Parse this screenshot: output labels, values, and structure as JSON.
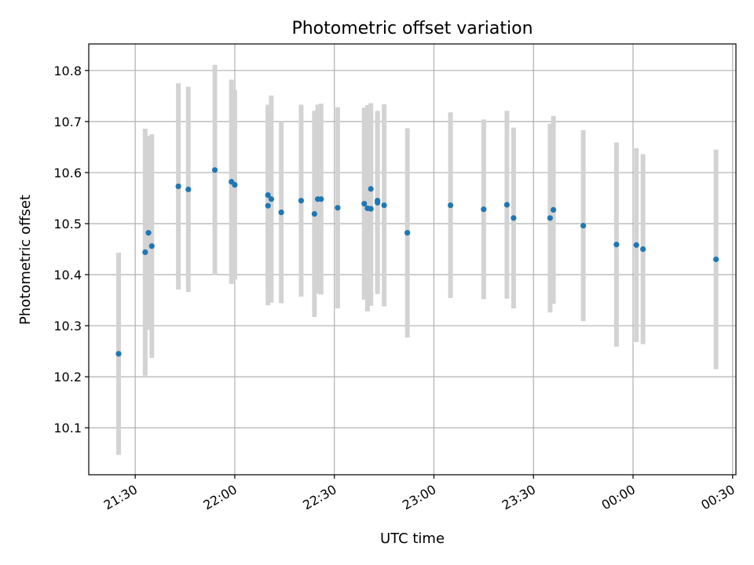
{
  "chart_data": {
    "type": "scatter",
    "title": "Photometric offset variation",
    "xlabel": "UTC time",
    "ylabel": "Photometric offset",
    "x_tick_labels": [
      "21:30",
      "22:00",
      "22:30",
      "23:00",
      "23:30",
      "00:00",
      "00:30"
    ],
    "y_tick_labels": [
      "10.1",
      "10.2",
      "10.3",
      "10.4",
      "10.5",
      "10.6",
      "10.7",
      "10.8"
    ],
    "y_ticks": [
      10.1,
      10.2,
      10.3,
      10.4,
      10.5,
      10.6,
      10.7,
      10.8
    ],
    "xlim": [
      "21:16",
      "00:31"
    ],
    "ylim": [
      10.008,
      10.852
    ],
    "grid": true,
    "colors": {
      "points": "#1f77b4",
      "errorbars": "#d3d3d3",
      "grid": "#b0b0b0"
    },
    "points": [
      {
        "time": "21:25",
        "y": 10.245,
        "err": 0.198
      },
      {
        "time": "21:33",
        "y": 10.444,
        "err": 0.242
      },
      {
        "time": "21:34",
        "y": 10.482,
        "err": 0.19
      },
      {
        "time": "21:35",
        "y": 10.456,
        "err": 0.219
      },
      {
        "time": "21:43",
        "y": 10.573,
        "err": 0.202
      },
      {
        "time": "21:46",
        "y": 10.567,
        "err": 0.201
      },
      {
        "time": "21:54",
        "y": 10.605,
        "err": 0.206
      },
      {
        "time": "21:59",
        "y": 10.582,
        "err": 0.2
      },
      {
        "time": "22:00",
        "y": 10.576,
        "err": 0.186
      },
      {
        "time": "22:10",
        "y": 10.556,
        "err": 0.177
      },
      {
        "time": "22:10",
        "y": 10.535,
        "err": 0.195
      },
      {
        "time": "22:11",
        "y": 10.548,
        "err": 0.203
      },
      {
        "time": "22:14",
        "y": 10.522,
        "err": 0.178
      },
      {
        "time": "22:20",
        "y": 10.545,
        "err": 0.188
      },
      {
        "time": "22:24",
        "y": 10.519,
        "err": 0.202
      },
      {
        "time": "22:25",
        "y": 10.548,
        "err": 0.185
      },
      {
        "time": "22:26",
        "y": 10.548,
        "err": 0.187
      },
      {
        "time": "22:31",
        "y": 10.531,
        "err": 0.197
      },
      {
        "time": "22:39",
        "y": 10.539,
        "err": 0.188
      },
      {
        "time": "22:40",
        "y": 10.53,
        "err": 0.202
      },
      {
        "time": "22:41",
        "y": 10.568,
        "err": 0.168
      },
      {
        "time": "22:41",
        "y": 10.529,
        "err": 0.19
      },
      {
        "time": "22:43",
        "y": 10.541,
        "err": 0.179
      },
      {
        "time": "22:43",
        "y": 10.545,
        "err": 0.176
      },
      {
        "time": "22:45",
        "y": 10.536,
        "err": 0.198
      },
      {
        "time": "22:52",
        "y": 10.482,
        "err": 0.205
      },
      {
        "time": "23:05",
        "y": 10.536,
        "err": 0.182
      },
      {
        "time": "23:15",
        "y": 10.528,
        "err": 0.176
      },
      {
        "time": "23:22",
        "y": 10.537,
        "err": 0.184
      },
      {
        "time": "23:24",
        "y": 10.511,
        "err": 0.177
      },
      {
        "time": "23:35",
        "y": 10.511,
        "err": 0.185
      },
      {
        "time": "23:36",
        "y": 10.527,
        "err": 0.184
      },
      {
        "time": "23:45",
        "y": 10.496,
        "err": 0.187
      },
      {
        "time": "23:55",
        "y": 10.459,
        "err": 0.2
      },
      {
        "time": "00:01",
        "y": 10.458,
        "err": 0.19
      },
      {
        "time": "00:03",
        "y": 10.45,
        "err": 0.186
      },
      {
        "time": "00:25",
        "y": 10.43,
        "err": 0.215
      }
    ]
  }
}
